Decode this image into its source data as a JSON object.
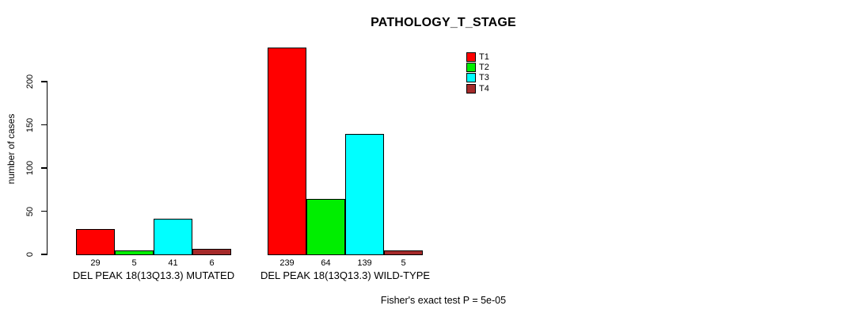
{
  "chart_data": {
    "type": "bar",
    "title": "PATHOLOGY_T_STAGE",
    "ylabel": "number of cases",
    "xlabel": "",
    "yticks": [
      0,
      50,
      100,
      150,
      200
    ],
    "ylim": [
      0,
      240
    ],
    "grid": false,
    "legend_position": "top-right-inside",
    "categories": [
      "DEL PEAK 18(13Q13.3) MUTATED",
      "DEL PEAK 18(13Q13.3) WILD-TYPE"
    ],
    "series": [
      {
        "name": "T1",
        "color": "#FF0000",
        "values": [
          29,
          239
        ]
      },
      {
        "name": "T2",
        "color": "#00EE00",
        "values": [
          5,
          64
        ]
      },
      {
        "name": "T3",
        "color": "#00FFFF",
        "values": [
          41,
          139
        ]
      },
      {
        "name": "T4",
        "color": "#A52A2A",
        "values": [
          6,
          5
        ]
      }
    ],
    "show_bar_value_labels": true,
    "annotation": "Fisher's exact test P = 5e-05"
  },
  "colors": {
    "background": "#FFFFFF",
    "axis": "#000000",
    "bar_border": "#000000",
    "text": "#000000"
  }
}
